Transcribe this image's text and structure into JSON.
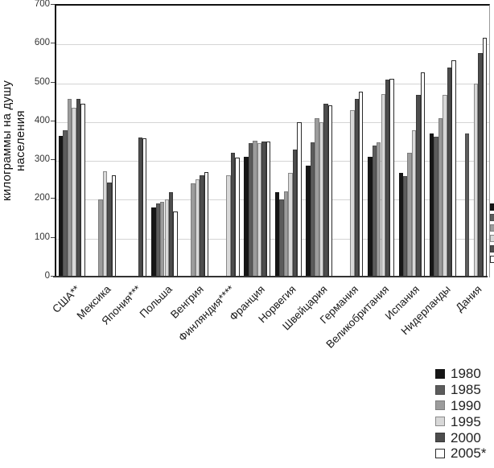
{
  "y_axis": {
    "label": "килограммы на душу населения",
    "tick_labels": [
      "700",
      "600",
      "500",
      "400",
      "300",
      "200",
      "100",
      "0"
    ]
  },
  "legend": {
    "position": "bottom-right",
    "entries": [
      {
        "label": "1980",
        "color": "#161616",
        "border": "#161616"
      },
      {
        "label": "1985",
        "color": "#5c5c5c",
        "border": "#4a4a4a"
      },
      {
        "label": "1990",
        "color": "#9c9c9c",
        "border": "#7d7d7d"
      },
      {
        "label": "1995",
        "color": "#d8d8d8",
        "border": "#8a8a8a"
      },
      {
        "label": "2000",
        "color": "#4d4d4d",
        "border": "#3a3a3a"
      },
      {
        "label": "2005*",
        "color": "#ffffff",
        "border": "#2b2b2b"
      }
    ]
  },
  "chart_data": {
    "type": "bar",
    "title": "",
    "xlabel": "",
    "ylabel": "килограммы на душу населения",
    "ylim": [
      0,
      700
    ],
    "yticks": [
      0,
      100,
      200,
      300,
      400,
      500,
      600,
      700
    ],
    "grid": true,
    "legend_position": "bottom-right",
    "categories": [
      "США**",
      "Мексика",
      "Япония***",
      "Польша",
      "Венгрия",
      "Финляндия****",
      "Франция",
      "Норвегия",
      "Швейцария",
      "Германия",
      "Великобритания",
      "Испания",
      "Нидерланды",
      "Дания"
    ],
    "series": [
      {
        "name": "1980",
        "color": "#161616",
        "border": "#161616",
        "values": [
          365,
          null,
          null,
          180,
          null,
          null,
          310,
          220,
          288,
          null,
          310,
          270,
          370,
          null
        ]
      },
      {
        "name": "1985",
        "color": "#5c5c5c",
        "border": "#4a4a4a",
        "values": [
          380,
          null,
          null,
          190,
          null,
          null,
          345,
          200,
          348,
          null,
          340,
          260,
          362,
          370
        ]
      },
      {
        "name": "1990",
        "color": "#9c9c9c",
        "border": "#7d7d7d",
        "values": [
          460,
          200,
          null,
          195,
          243,
          null,
          352,
          222,
          410,
          null,
          348,
          320,
          410,
          null
        ]
      },
      {
        "name": "1995",
        "color": "#d8d8d8",
        "border": "#8a8a8a",
        "values": [
          438,
          273,
          null,
          200,
          252,
          262,
          345,
          270,
          400,
          430,
          472,
          380,
          470,
          500
        ]
      },
      {
        "name": "2000",
        "color": "#4d4d4d",
        "border": "#3a3a3a",
        "values": [
          460,
          244,
          360,
          220,
          262,
          322,
          350,
          330,
          447,
          460,
          510,
          470,
          540,
          578
        ]
      },
      {
        "name": "2005*",
        "color": "#ffffff",
        "border": "#2b2b2b",
        "values": [
          448,
          263,
          358,
          170,
          272,
          308,
          350,
          400,
          444,
          478,
          512,
          528,
          560,
          617
        ]
      }
    ]
  }
}
